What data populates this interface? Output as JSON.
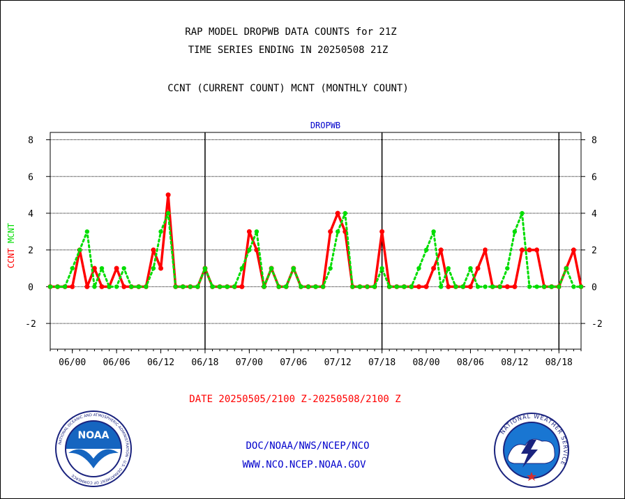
{
  "header": {
    "title_line1": "RAP MODEL DROPWB DATA COUNTS for 21Z",
    "title_line2": "TIME SERIES ENDING IN 20250508 21Z",
    "title_line3": "CCNT (CURRENT COUNT) MCNT (MONTHLY COUNT)"
  },
  "footer": {
    "date_range": "DATE 20250505/2100 Z-20250508/2100 Z",
    "org_path": "DOC/NOAA/NWS/NCEP/NCO",
    "website": "WWW.NCO.NCEP.NOAA.GOV"
  },
  "logos": {
    "left": {
      "icon": "noaa-logo",
      "text": "NOAA",
      "ring_text": "NATIONAL OCEANIC AND ATMOSPHERIC ADMINISTRATION · U.S. DEPARTMENT OF COMMERCE"
    },
    "right": {
      "icon": "nws-logo",
      "ring_text": "NATIONAL WEATHER SERVICE"
    }
  },
  "colors": {
    "ccnt": "#ff0000",
    "mcnt": "#00dd00",
    "subtitle": "#0000cc",
    "date_text": "#ff0000",
    "footer_text": "#0000cc"
  },
  "chart_data": {
    "type": "line",
    "subtitle": "DROPWB",
    "ylabel_left_ccnt": "CCNT",
    "ylabel_left_mcnt": "MCNT",
    "ylim": [
      -3.4,
      8.4
    ],
    "yticks": [
      -2,
      0,
      2,
      4,
      6,
      8
    ],
    "grid": true,
    "x_tick_labels": [
      "06/00",
      "06/06",
      "06/12",
      "06/18",
      "07/00",
      "07/06",
      "07/12",
      "07/18",
      "08/00",
      "08/06",
      "08/12",
      "08/18"
    ],
    "x_tick_hours": [
      3,
      9,
      15,
      21,
      27,
      33,
      39,
      45,
      51,
      57,
      63,
      69
    ],
    "day_boundary_hours": [
      21,
      45,
      69
    ],
    "xlim_hours": [
      0,
      72
    ],
    "series": [
      {
        "name": "CCNT",
        "color": "#ff0000",
        "values": [
          0,
          0,
          0,
          0,
          2,
          0,
          1,
          0,
          0,
          1,
          0,
          0,
          0,
          0,
          2,
          1,
          5,
          0,
          0,
          0,
          0,
          1,
          0,
          0,
          0,
          0,
          0,
          3,
          2,
          0,
          1,
          0,
          0,
          1,
          0,
          0,
          0,
          0,
          3,
          4,
          3,
          0,
          0,
          0,
          0,
          3,
          0,
          0,
          0,
          0,
          0,
          0,
          1,
          2,
          0,
          0,
          0,
          0,
          1,
          2,
          0,
          0,
          0,
          0,
          2,
          2,
          2,
          0,
          0,
          0,
          1,
          2,
          0
        ]
      },
      {
        "name": "MCNT",
        "color": "#00dd00",
        "values": [
          0,
          0,
          0,
          1,
          2,
          3,
          0,
          1,
          0,
          0,
          1,
          0,
          0,
          0,
          1,
          3,
          4,
          0,
          0,
          0,
          0,
          1,
          0,
          0,
          0,
          0,
          1,
          2,
          3,
          0,
          1,
          0,
          0,
          1,
          0,
          0,
          0,
          0,
          1,
          3,
          4,
          0,
          0,
          0,
          0,
          1,
          0,
          0,
          0,
          0,
          1,
          2,
          3,
          0,
          1,
          0,
          0,
          1,
          0,
          0,
          0,
          0,
          1,
          3,
          4,
          0,
          0,
          0,
          0,
          0,
          1,
          0,
          0
        ]
      }
    ]
  }
}
